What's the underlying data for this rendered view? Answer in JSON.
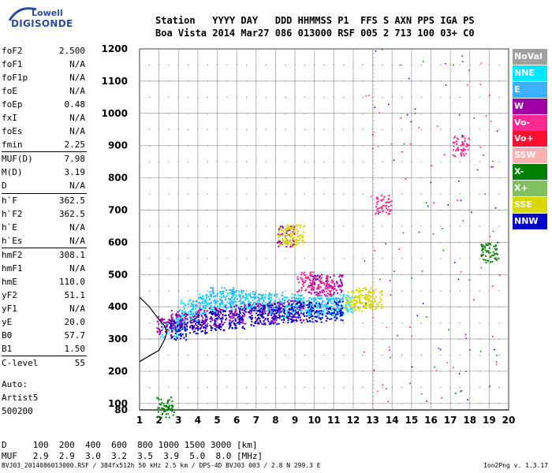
{
  "logo": {
    "line1": "Lowell",
    "line2": "DIGISONDE"
  },
  "header": {
    "line1": "Station   YYYY DAY   DDD HHMMSS P1  FFS S AXN PPS IGA PS",
    "line2": "Boa Vista 2014 Mar27 086 013000 RSF 005 2 713 100 03+ C0"
  },
  "params": [
    {
      "label": "foF2",
      "value": "2.500"
    },
    {
      "label": "foF1",
      "value": "N/A"
    },
    {
      "label": "foF1p",
      "value": "N/A"
    },
    {
      "label": "foE",
      "value": "N/A"
    },
    {
      "label": "foEp",
      "value": "0.48"
    },
    {
      "label": "fxI",
      "value": "N/A"
    },
    {
      "label": "foEs",
      "value": "N/A"
    },
    {
      "label": "fmin",
      "value": "2.25"
    },
    {
      "label": "MUF(D)",
      "value": "7.98"
    },
    {
      "label": "M(D)",
      "value": "3.19"
    },
    {
      "label": "D",
      "value": "N/A"
    },
    {
      "label": "h`F",
      "value": "362.5"
    },
    {
      "label": "h`F2",
      "value": "362.5"
    },
    {
      "label": "h`E",
      "value": "N/A"
    },
    {
      "label": "h`Es",
      "value": "N/A"
    },
    {
      "label": "hmF2",
      "value": "308.1"
    },
    {
      "label": "hmF1",
      "value": "N/A"
    },
    {
      "label": "hmE",
      "value": "110.0"
    },
    {
      "label": "yF2",
      "value": "51.1"
    },
    {
      "label": "yF1",
      "value": "N/A"
    },
    {
      "label": "yE",
      "value": "20.0"
    },
    {
      "label": "B0",
      "value": "57.7"
    },
    {
      "label": "B1",
      "value": "1.50"
    },
    {
      "label": "C-level",
      "value": "55"
    }
  ],
  "auto": {
    "line1": "Auto:",
    "line2": "Artist5",
    "line3": "500200"
  },
  "bottom": {
    "d_row": "D     100  200  400  600  800 1000 1500 3000 [km]",
    "muf_row": "MUF   2.9  2.9  3.0  3.2  3.5  3.9  5.0  8.0 [MHz]"
  },
  "footer": {
    "left": "BVJ03_2014086013000.RSF / 384fx512h 50 kHz 2.5 km / DPS-4D BVJ03 003 / 2.8 N 299.3 E",
    "right": "Ion2Png v. 1.3.17"
  },
  "legend": [
    {
      "label": "NoVal",
      "color": "#a0a0a0"
    },
    {
      "label": "NNE",
      "color": "#00e6ff"
    },
    {
      "label": "E",
      "color": "#3ab0ff"
    },
    {
      "label": "W",
      "color": "#a000a8"
    },
    {
      "label": "Vo-",
      "color": "#ff2a90"
    },
    {
      "label": "Vo+",
      "color": "#ff1030"
    },
    {
      "label": "SSW",
      "color": "#ffb0b0"
    },
    {
      "label": "X-",
      "color": "#008000"
    },
    {
      "label": "X+",
      "color": "#80c060"
    },
    {
      "label": "SSE",
      "color": "#d8d800"
    },
    {
      "label": "NNW",
      "color": "#0000c8"
    }
  ],
  "chart_data": {
    "type": "scatter",
    "title": "",
    "xlabel": "",
    "ylabel": "",
    "xlim": [
      1,
      20
    ],
    "ylim": [
      80,
      1200
    ],
    "x_ticks": [
      "1",
      "2",
      "3",
      "4",
      "5",
      "6",
      "7",
      "8",
      "9",
      "10",
      "11",
      "12",
      "13",
      "14",
      "15",
      "16",
      "17",
      "18",
      "19",
      "20"
    ],
    "y_ticks": [
      "100",
      "200",
      "300",
      "400",
      "500",
      "600",
      "700",
      "800",
      "900",
      "1000",
      "1100",
      "1200"
    ],
    "grid": true,
    "legend_placement": "right",
    "series": [
      {
        "name": "NNE",
        "color": "#00e6ff",
        "points": [
          [
            2.5,
            335
          ],
          [
            3.5,
            390
          ],
          [
            4.5,
            410
          ],
          [
            5.5,
            420
          ],
          [
            6.5,
            420
          ],
          [
            7.5,
            410
          ],
          [
            8.5,
            400
          ],
          [
            9.5,
            400
          ],
          [
            10.5,
            410
          ],
          [
            11.5,
            410
          ]
        ]
      },
      {
        "name": "E",
        "color": "#3ab0ff",
        "points": [
          [
            3.0,
            360
          ],
          [
            4.0,
            400
          ],
          [
            5.0,
            430
          ],
          [
            6.0,
            430
          ],
          [
            7.0,
            420
          ],
          [
            8.0,
            415
          ],
          [
            9.0,
            410
          ],
          [
            10.0,
            400
          ],
          [
            11.0,
            400
          ]
        ]
      },
      {
        "name": "W",
        "color": "#a000a8",
        "points": [
          [
            2.3,
            340
          ],
          [
            3.0,
            360
          ],
          [
            4.0,
            365
          ],
          [
            5.0,
            370
          ],
          [
            6.0,
            375
          ],
          [
            7.0,
            380
          ],
          [
            8.0,
            385
          ],
          [
            9.0,
            390
          ],
          [
            10.0,
            470
          ],
          [
            11.0,
            470
          ],
          [
            8.5,
            620
          ]
        ]
      },
      {
        "name": "NNW",
        "color": "#0000c8",
        "points": [
          [
            3.0,
            330
          ],
          [
            4.0,
            350
          ],
          [
            5.0,
            360
          ],
          [
            6.0,
            365
          ],
          [
            7.0,
            375
          ],
          [
            8.0,
            380
          ],
          [
            9.0,
            385
          ],
          [
            10.0,
            385
          ],
          [
            11.0,
            390
          ]
        ]
      },
      {
        "name": "SSE",
        "color": "#d8d800",
        "points": [
          [
            12.0,
            420
          ],
          [
            12.5,
            430
          ],
          [
            13.0,
            425
          ],
          [
            9.0,
            625
          ],
          [
            8.5,
            620
          ]
        ]
      },
      {
        "name": "X-",
        "color": "#008000",
        "points": [
          [
            2.3,
            90
          ],
          [
            19.0,
            570
          ]
        ]
      },
      {
        "name": "Vo-",
        "color": "#ff2a90",
        "points": [
          [
            9.5,
            480
          ],
          [
            10.5,
            465
          ],
          [
            13.5,
            720
          ],
          [
            17.5,
            900
          ]
        ]
      }
    ],
    "trace_curve": {
      "description": "",
      "points": [
        [
          1,
          230
        ],
        [
          2.0,
          265
        ],
        [
          2.3,
          300
        ],
        [
          2.4,
          320
        ],
        [
          2.3,
          340
        ],
        [
          2.0,
          360
        ],
        [
          1.5,
          400
        ],
        [
          1,
          430
        ]
      ]
    }
  }
}
